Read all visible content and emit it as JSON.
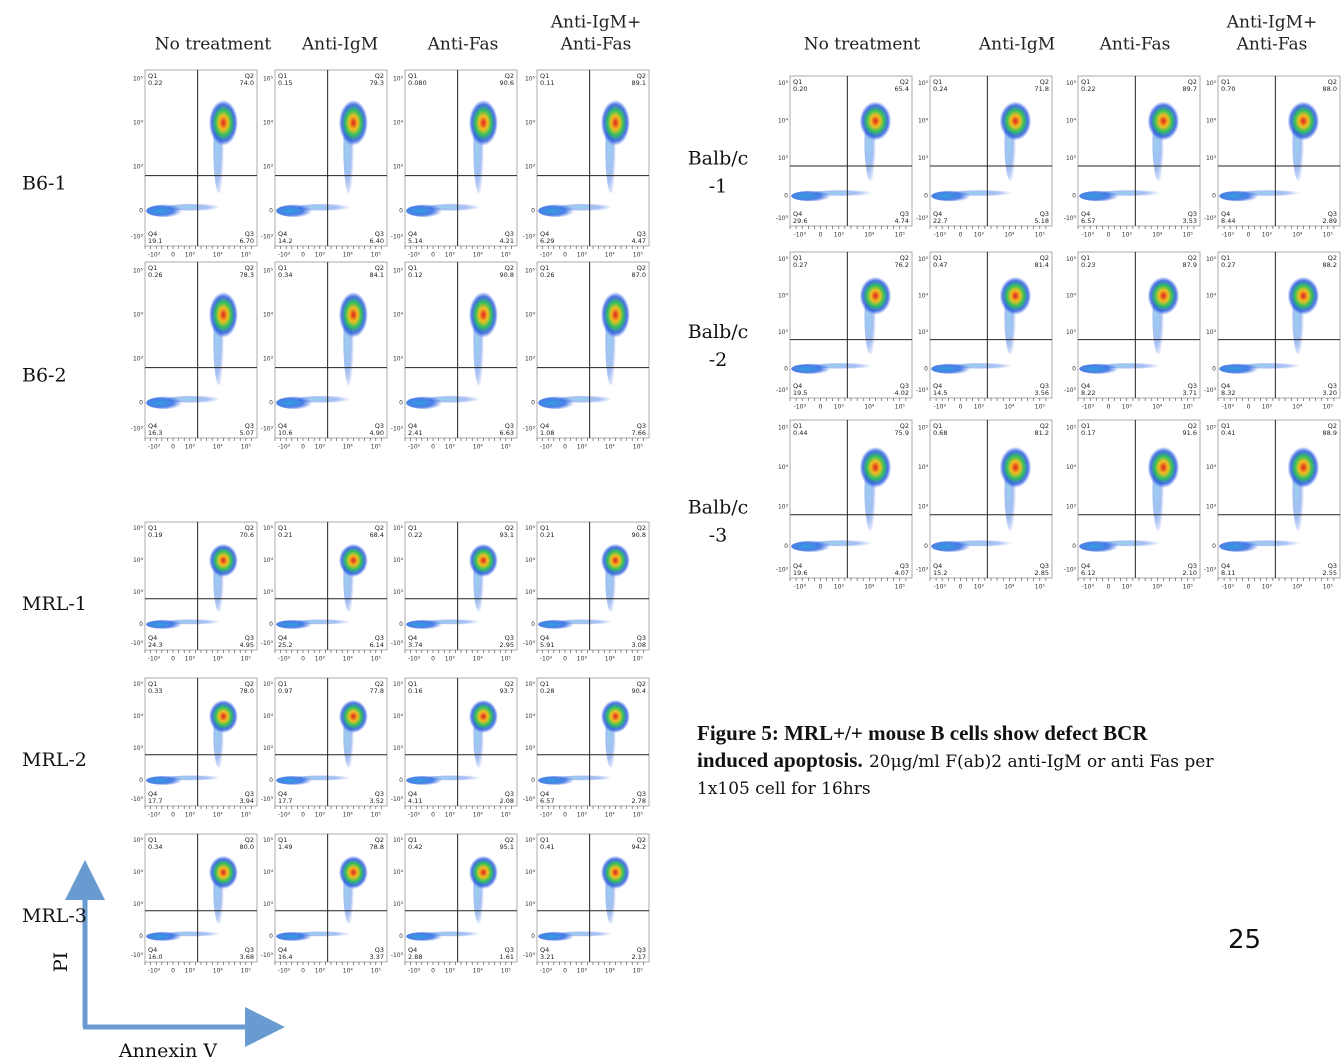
{
  "left_panel": {
    "column_headers": [
      [
        "No treatment"
      ],
      [
        "Anti-IgM"
      ],
      [
        "Anti-Fas"
      ],
      [
        "Anti-IgM+",
        "Anti-Fas"
      ]
    ],
    "rows": [
      {
        "label": [
          "B6-1"
        ],
        "plots": [
          [
            "0.22",
            "74.0",
            "6.70",
            "19.1"
          ],
          [
            "0.15",
            "79.3",
            "6.40",
            "14.2"
          ],
          [
            "0.080",
            "90.6",
            "4.21",
            "5.14"
          ],
          [
            "0.11",
            "89.1",
            "4.47",
            "6.29"
          ]
        ]
      },
      {
        "label": [
          "B6-2"
        ],
        "plots": [
          [
            "0.26",
            "78.3",
            "5.07",
            "16.3"
          ],
          [
            "0.34",
            "84.1",
            "4.90",
            "10.6"
          ],
          [
            "0.12",
            "90.8",
            "6.63",
            "2.41"
          ],
          [
            "0.26",
            "87.0",
            "7.66",
            "1.08"
          ]
        ]
      },
      {
        "label": [
          "MRL-1"
        ],
        "plots": [
          [
            "0.19",
            "70.6",
            "4.95",
            "24.3"
          ],
          [
            "0.21",
            "68.4",
            "6.14",
            "25.2"
          ],
          [
            "0.22",
            "93.1",
            "2.95",
            "3.74"
          ],
          [
            "0.21",
            "90.8",
            "3.08",
            "5.91"
          ]
        ]
      },
      {
        "label": [
          "MRL-2"
        ],
        "plots": [
          [
            "0.33",
            "78.0",
            "3.94",
            "17.7"
          ],
          [
            "0.97",
            "77.8",
            "3.52",
            "17.7"
          ],
          [
            "0.16",
            "93.7",
            "2.08",
            "4.11"
          ],
          [
            "0.28",
            "90.4",
            "2.78",
            "6.57"
          ]
        ]
      },
      {
        "label": [
          "MRL-3"
        ],
        "plots": [
          [
            "0.34",
            "80.0",
            "3.68",
            "16.0"
          ],
          [
            "1.49",
            "78.8",
            "3.37",
            "16.4"
          ],
          [
            "0.42",
            "95.1",
            "1.61",
            "2.88"
          ],
          [
            "0.41",
            "94.2",
            "2.17",
            "3.21"
          ]
        ]
      }
    ]
  },
  "right_panel": {
    "column_headers": [
      [
        "No treatment"
      ],
      [
        "Anti-IgM"
      ],
      [
        "Anti-Fas"
      ],
      [
        "Anti-IgM+",
        "Anti-Fas"
      ]
    ],
    "rows": [
      {
        "label": [
          "Balb/c",
          "-1"
        ],
        "plots": [
          [
            "0.20",
            "65.4",
            "4.74",
            "29.6"
          ],
          [
            "0.24",
            "71.8",
            "5.18",
            "22.7"
          ],
          [
            "0.22",
            "89.7",
            "3.53",
            "6.57"
          ],
          [
            "0.70",
            "88.0",
            "2.89",
            "8.44"
          ]
        ]
      },
      {
        "label": [
          "Balb/c",
          "-2"
        ],
        "plots": [
          [
            "0.27",
            "76.2",
            "4.02",
            "19.5"
          ],
          [
            "0.47",
            "81.4",
            "3.56",
            "14.5"
          ],
          [
            "0.23",
            "87.9",
            "3.71",
            "8.22"
          ],
          [
            "0.27",
            "88.2",
            "3.20",
            "8.32"
          ]
        ]
      },
      {
        "label": [
          "Balb/c",
          "-3"
        ],
        "plots": [
          [
            "0.44",
            "75.9",
            "4.07",
            "19.6"
          ],
          [
            "0.68",
            "81.2",
            "2.85",
            "15.2"
          ],
          [
            "0.17",
            "91.6",
            "2.10",
            "6.12"
          ],
          [
            "0.41",
            "88.9",
            "2.55",
            "8.11"
          ]
        ]
      }
    ]
  },
  "quadrant_labels": [
    "Q1",
    "Q2",
    "Q3",
    "Q4"
  ],
  "plot_axis": {
    "yticks": [
      "10⁵",
      "10⁴",
      "10³",
      "0",
      "-10³"
    ],
    "xticks": [
      "-10³",
      "0",
      "10³",
      "10⁴",
      "10⁵"
    ]
  },
  "axis_labels": {
    "y": "PI",
    "x": "Annexin V"
  },
  "caption": {
    "bold": "Figure 5: MRL+/+ mouse B cells show defect BCR induced apoptosis.",
    "text": "20μg/ml F(ab)2 anti-IgM or anti Fas per 1x105 cell for 16hrs"
  },
  "page_number": "25"
}
